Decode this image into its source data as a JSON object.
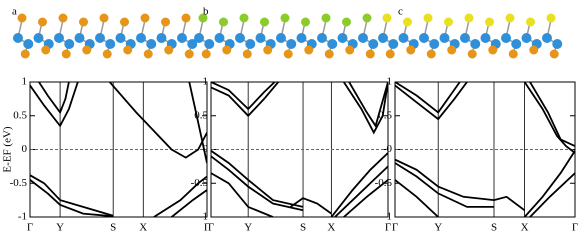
{
  "chart_data": [
    {
      "type": "line",
      "panel_label": "a",
      "y_label": "E-EF (eV)",
      "color": "#000000",
      "xlim": [
        0,
        1
      ],
      "ylim": [
        -1,
        1
      ],
      "xticks": [
        {
          "value": 0,
          "label": "Γ"
        },
        {
          "value": 0.17,
          "label": "Y"
        },
        {
          "value": 0.47,
          "label": "S"
        },
        {
          "value": 0.64,
          "label": "X"
        },
        {
          "value": 1,
          "label": "Γ"
        }
      ],
      "yticks": [
        -1,
        -0.5,
        0,
        0.5,
        1
      ],
      "fermi_line": {
        "y": 0,
        "color": "#e8302f"
      },
      "series": [
        {
          "x": [
            0,
            0.08,
            0.17,
            0.22,
            0.27
          ],
          "values": [
            0.95,
            0.65,
            0.35,
            0.6,
            1
          ]
        },
        {
          "x": [
            0.05,
            0.1,
            0.17,
            0.2,
            0.22
          ],
          "values": [
            1,
            0.8,
            0.55,
            0.75,
            1
          ]
        },
        {
          "x": [
            0.45,
            0.6,
            0.8,
            0.88,
            0.95,
            1
          ],
          "values": [
            1,
            0.55,
            0,
            -0.12,
            0,
            0.25
          ]
        },
        {
          "x": [
            0.9,
            0.95,
            1
          ],
          "values": [
            1,
            0.4,
            -0.2
          ]
        },
        {
          "x": [
            0,
            0.08,
            0.17,
            0.3,
            0.47
          ],
          "values": [
            -0.38,
            -0.5,
            -0.75,
            -0.85,
            -0.98
          ]
        },
        {
          "x": [
            0,
            0.1,
            0.17,
            0.3,
            0.47
          ],
          "values": [
            -0.45,
            -0.65,
            -0.82,
            -0.95,
            -0.99
          ]
        },
        {
          "x": [
            0.7,
            0.85,
            0.95,
            1
          ],
          "values": [
            -1,
            -0.75,
            -0.5,
            -0.4
          ]
        },
        {
          "x": [
            0.8,
            0.92,
            1
          ],
          "values": [
            -1,
            -0.75,
            -0.6
          ]
        }
      ]
    },
    {
      "type": "line",
      "panel_label": "b",
      "color": "#000000",
      "xlim": [
        0,
        1
      ],
      "ylim": [
        -1,
        1
      ],
      "xticks": [
        {
          "value": 0,
          "label": "Γ"
        },
        {
          "value": 0.21,
          "label": "Y"
        },
        {
          "value": 0.52,
          "label": "S"
        },
        {
          "value": 0.68,
          "label": "X"
        },
        {
          "value": 1,
          "label": "Γ"
        }
      ],
      "yticks": [
        -1,
        -0.5,
        0,
        0.5,
        1
      ],
      "fermi_line": {
        "y": 0,
        "color": "#e8302f"
      },
      "series": [
        {
          "x": [
            0,
            0.1,
            0.21,
            0.3,
            0.38
          ],
          "values": [
            0.92,
            0.8,
            0.5,
            0.75,
            1
          ]
        },
        {
          "x": [
            0,
            0.1,
            0.21,
            0.3,
            0.36
          ],
          "values": [
            1,
            0.88,
            0.6,
            0.85,
            1
          ]
        },
        {
          "x": [
            0.75,
            0.85,
            0.92,
            0.97,
            1
          ],
          "values": [
            1,
            0.6,
            0.25,
            0.5,
            1
          ]
        },
        {
          "x": [
            0.78,
            0.88,
            0.93,
            1
          ],
          "values": [
            1,
            0.55,
            0.35,
            1
          ]
        },
        {
          "x": [
            0,
            0.1,
            0.21,
            0.35,
            0.52
          ],
          "values": [
            -0.02,
            -0.2,
            -0.45,
            -0.75,
            -0.85
          ]
        },
        {
          "x": [
            0,
            0.1,
            0.21,
            0.35,
            0.52
          ],
          "values": [
            -0.1,
            -0.3,
            -0.55,
            -0.8,
            -0.9
          ]
        },
        {
          "x": [
            0,
            0.1,
            0.21,
            0.35
          ],
          "values": [
            -0.35,
            -0.5,
            -0.85,
            -1
          ]
        },
        {
          "x": [
            0.45,
            0.52,
            0.6,
            0.68
          ],
          "values": [
            -0.85,
            -0.72,
            -0.8,
            -0.95
          ]
        },
        {
          "x": [
            0.68,
            0.8,
            0.9,
            1
          ],
          "values": [
            -1,
            -0.6,
            -0.3,
            -0.05
          ]
        },
        {
          "x": [
            0.7,
            0.82,
            0.92,
            1
          ],
          "values": [
            -1,
            -0.7,
            -0.45,
            -0.25
          ]
        },
        {
          "x": [
            0.75,
            0.88,
            1
          ],
          "values": [
            -1,
            -0.7,
            -0.45
          ]
        }
      ]
    },
    {
      "type": "line",
      "panel_label": "c",
      "color": "#000000",
      "xlim": [
        0,
        1
      ],
      "ylim": [
        -1,
        1
      ],
      "xticks": [
        {
          "value": 0,
          "label": "Γ"
        },
        {
          "value": 0.24,
          "label": "Y"
        },
        {
          "value": 0.55,
          "label": "S"
        },
        {
          "value": 0.72,
          "label": "X"
        },
        {
          "value": 1,
          "label": "Γ"
        }
      ],
      "yticks": [
        -1,
        -0.5,
        0,
        0.5,
        1
      ],
      "fermi_line": {
        "y": 0,
        "color": "#e8302f"
      },
      "series": [
        {
          "x": [
            0,
            0.12,
            0.24,
            0.33,
            0.4
          ],
          "values": [
            0.95,
            0.7,
            0.45,
            0.75,
            1
          ]
        },
        {
          "x": [
            0,
            0.12,
            0.24,
            0.32,
            0.36
          ],
          "values": [
            1,
            0.8,
            0.55,
            0.85,
            1
          ]
        },
        {
          "x": [
            0.72,
            0.82,
            0.9,
            0.95,
            1
          ],
          "values": [
            1,
            0.6,
            0.2,
            0.05,
            -0.05
          ]
        },
        {
          "x": [
            0.75,
            0.85,
            0.92,
            1
          ],
          "values": [
            1,
            0.55,
            0.15,
            0.05
          ]
        },
        {
          "x": [
            0,
            0.12,
            0.24,
            0.38,
            0.55
          ],
          "values": [
            -0.15,
            -0.3,
            -0.55,
            -0.7,
            -0.75
          ]
        },
        {
          "x": [
            0,
            0.12,
            0.24,
            0.4,
            0.55
          ],
          "values": [
            -0.2,
            -0.4,
            -0.65,
            -0.85,
            -0.85
          ]
        },
        {
          "x": [
            0,
            0.12,
            0.24
          ],
          "values": [
            -0.45,
            -0.7,
            -1
          ]
        },
        {
          "x": [
            0.55,
            0.62,
            0.72
          ],
          "values": [
            -0.75,
            -0.7,
            -0.9
          ]
        },
        {
          "x": [
            0.72,
            0.82,
            0.92,
            1
          ],
          "values": [
            -1,
            -0.7,
            -0.35,
            -0.02
          ]
        },
        {
          "x": [
            0.75,
            0.86,
            1
          ],
          "values": [
            -1,
            -0.7,
            -0.35
          ]
        }
      ]
    }
  ]
}
